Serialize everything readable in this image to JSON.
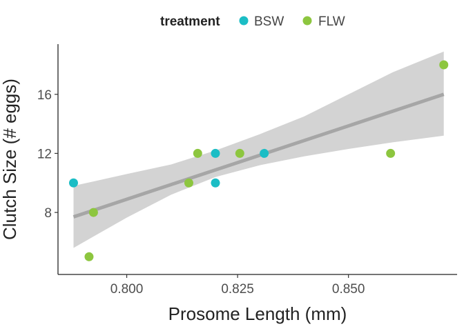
{
  "chart_data": {
    "type": "scatter",
    "xlabel": "Prosome Length (mm)",
    "ylabel": "Clutch Size (# eggs)",
    "xlim": [
      0.7845,
      0.8745
    ],
    "ylim": [
      3.8,
      19.4
    ],
    "x_ticks": [
      0.8,
      0.825,
      0.85
    ],
    "x_tick_labels": [
      "0.800",
      "0.825",
      "0.850"
    ],
    "y_ticks": [
      8,
      12,
      16
    ],
    "y_tick_labels": [
      "8",
      "12",
      "16"
    ],
    "grid": false,
    "legend": {
      "title": "treatment",
      "position": "top",
      "entries": [
        {
          "name": "BSW",
          "color": "#1bbdc5"
        },
        {
          "name": "FLW",
          "color": "#8dc63f"
        }
      ]
    },
    "series": [
      {
        "name": "BSW",
        "color": "#1bbdc5",
        "points": [
          {
            "x": 0.788,
            "y": 10
          },
          {
            "x": 0.82,
            "y": 12
          },
          {
            "x": 0.82,
            "y": 10
          },
          {
            "x": 0.831,
            "y": 12
          }
        ]
      },
      {
        "name": "FLW",
        "color": "#8dc63f",
        "points": [
          {
            "x": 0.7915,
            "y": 5
          },
          {
            "x": 0.7925,
            "y": 8
          },
          {
            "x": 0.814,
            "y": 10
          },
          {
            "x": 0.816,
            "y": 12
          },
          {
            "x": 0.8255,
            "y": 12
          },
          {
            "x": 0.8595,
            "y": 12
          },
          {
            "x": 0.8715,
            "y": 18
          }
        ]
      }
    ],
    "trend": {
      "method": "linear",
      "color": "#a6a6a6",
      "ribbon_color": "#d3d3d3",
      "line": [
        {
          "x": 0.788,
          "y": 7.7
        },
        {
          "x": 0.8715,
          "y": 16.0
        }
      ],
      "ribbon": [
        {
          "x": 0.788,
          "lower": 5.6,
          "upper": 9.8
        },
        {
          "x": 0.8,
          "lower": 7.65,
          "upper": 10.6
        },
        {
          "x": 0.81,
          "lower": 9.2,
          "upper": 11.25
        },
        {
          "x": 0.82,
          "lower": 10.4,
          "upper": 12.2
        },
        {
          "x": 0.83,
          "lower": 11.2,
          "upper": 13.3
        },
        {
          "x": 0.84,
          "lower": 11.8,
          "upper": 14.5
        },
        {
          "x": 0.85,
          "lower": 12.3,
          "upper": 16.0
        },
        {
          "x": 0.86,
          "lower": 12.75,
          "upper": 17.5
        },
        {
          "x": 0.8715,
          "lower": 13.2,
          "upper": 18.9
        }
      ]
    }
  }
}
